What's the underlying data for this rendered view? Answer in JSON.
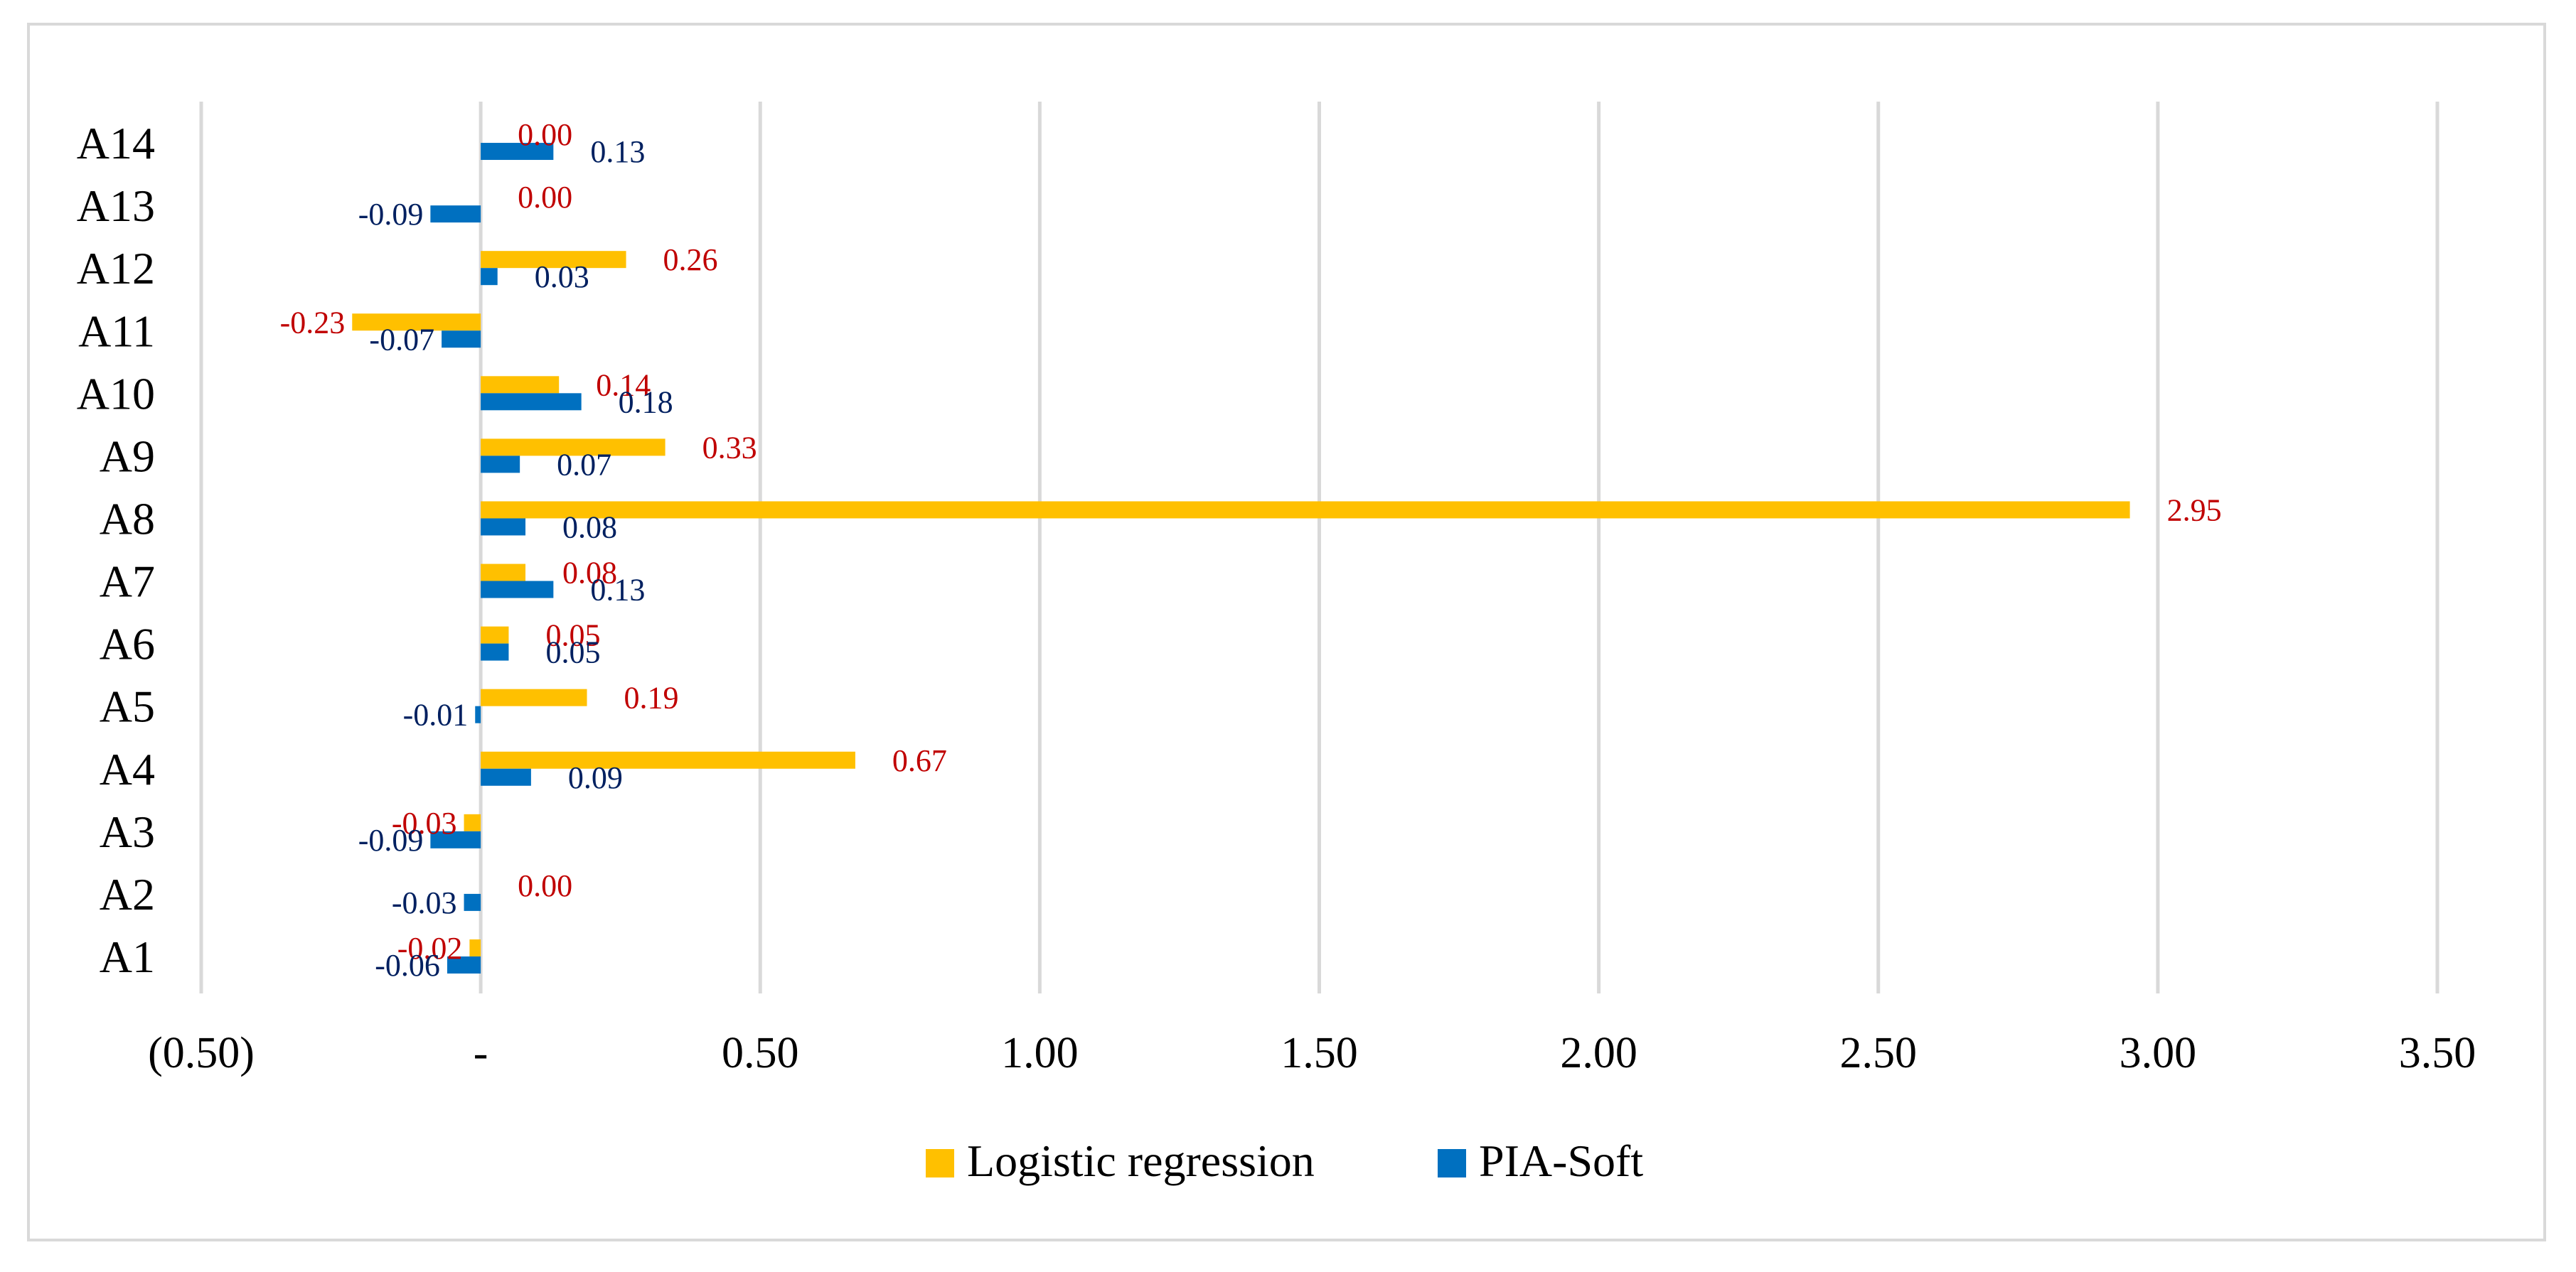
{
  "chart_data": {
    "type": "bar",
    "orientation": "horizontal",
    "title": "",
    "xlabel": "",
    "ylabel": "",
    "xlim": [
      -0.5,
      3.5
    ],
    "x_ticks": [
      -0.5,
      0,
      0.5,
      1.0,
      1.5,
      2.0,
      2.5,
      3.0,
      3.5
    ],
    "x_tick_labels": [
      "(0.50)",
      "-",
      "0.50",
      "1.00",
      "1.50",
      "2.00",
      "2.50",
      "3.00",
      "3.50"
    ],
    "grid": "vertical",
    "legend_position": "bottom",
    "categories": [
      "A1",
      "A2",
      "A3",
      "A4",
      "A5",
      "A6",
      "A7",
      "A8",
      "A9",
      "A10",
      "A11",
      "A12",
      "A13",
      "A14"
    ],
    "series": [
      {
        "name": "Logistic regression",
        "color": "#FFC000",
        "label_color": "#C00000",
        "values": [
          -0.02,
          0.0,
          -0.03,
          0.67,
          0.19,
          0.05,
          0.08,
          2.95,
          0.33,
          0.14,
          -0.23,
          0.26,
          0.0,
          0.0
        ],
        "labels": [
          "-0.02",
          "0.00",
          "-0.03",
          "0.67",
          "0.19",
          "0.05",
          "0.08",
          "2.95",
          "0.33",
          "0.14",
          "-0.23",
          "0.26",
          "0.00",
          "0.00"
        ]
      },
      {
        "name": "PIA-Soft",
        "color": "#0070C0",
        "label_color": "#002060",
        "values": [
          -0.06,
          -0.03,
          -0.09,
          0.09,
          -0.01,
          0.05,
          0.13,
          0.08,
          0.07,
          0.18,
          -0.07,
          0.03,
          -0.09,
          0.13
        ],
        "labels": [
          "-0.06",
          "-0.03",
          "-0.09",
          "0.09",
          "-0.01",
          "0.05",
          "0.13",
          "0.08",
          "0.07",
          "0.18",
          "-0.07",
          "0.03",
          "-0.09",
          "0.13"
        ]
      }
    ]
  }
}
